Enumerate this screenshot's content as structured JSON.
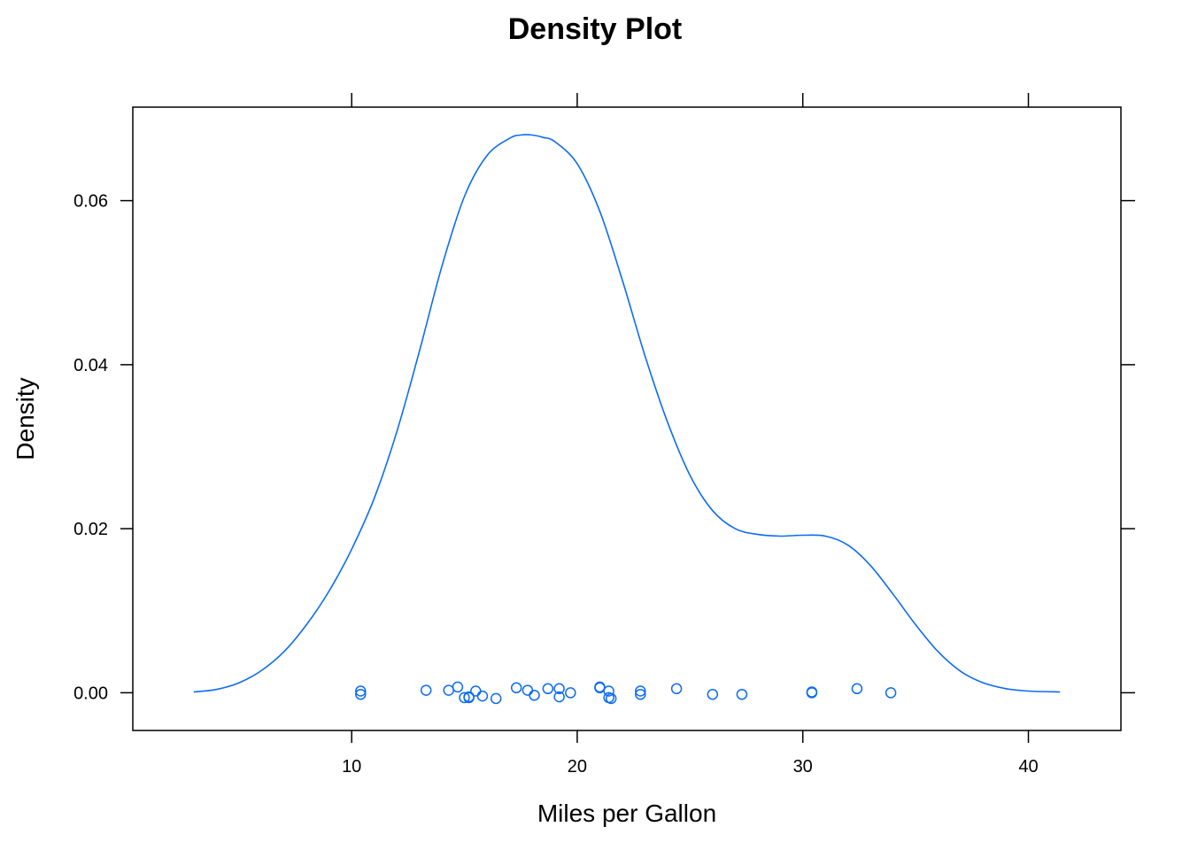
{
  "chart_data": {
    "type": "line",
    "title": "Density Plot",
    "xlabel": "Miles per Gallon",
    "ylabel": "Density",
    "xlim": [
      0.3,
      44.1
    ],
    "ylim": [
      -0.0046,
      0.0714
    ],
    "x_ticks": [
      10,
      20,
      30,
      40
    ],
    "x_tick_labels": [
      "10",
      "20",
      "30",
      "40"
    ],
    "y_ticks": [
      0.0,
      0.02,
      0.04,
      0.06
    ],
    "y_tick_labels": [
      "0.00",
      "0.02",
      "0.04",
      "0.06"
    ],
    "grid": false,
    "color": "#0c6cf5",
    "series": [
      {
        "kind": "density-curve",
        "x": [
          3.0,
          4.0,
          5.0,
          6.0,
          7.0,
          8.0,
          9.0,
          10.0,
          11.0,
          12.0,
          13.0,
          14.0,
          15.0,
          16.0,
          17.0,
          17.5,
          18.0,
          18.5,
          19.0,
          20.0,
          21.0,
          22.0,
          23.0,
          24.0,
          25.0,
          26.0,
          27.0,
          28.0,
          29.0,
          30.0,
          31.0,
          32.0,
          33.0,
          34.0,
          35.0,
          36.0,
          37.0,
          38.0,
          39.0,
          40.0,
          41.4
        ],
        "y": [
          0.0001,
          0.0004,
          0.0012,
          0.0027,
          0.005,
          0.0083,
          0.0124,
          0.0175,
          0.0237,
          0.0318,
          0.0416,
          0.052,
          0.0605,
          0.0655,
          0.0676,
          0.068,
          0.068,
          0.0677,
          0.0672,
          0.0645,
          0.0587,
          0.0503,
          0.0411,
          0.033,
          0.0265,
          0.0222,
          0.02,
          0.0193,
          0.0191,
          0.0192,
          0.0191,
          0.018,
          0.0155,
          0.012,
          0.0083,
          0.005,
          0.0026,
          0.0012,
          0.0005,
          0.0002,
          0.0001
        ]
      },
      {
        "kind": "jittered-points",
        "x": [
          10.4,
          10.4,
          13.3,
          14.3,
          14.7,
          15.0,
          15.2,
          15.2,
          15.5,
          15.8,
          16.4,
          17.3,
          17.8,
          18.1,
          18.7,
          19.2,
          19.2,
          19.7,
          21.0,
          21.0,
          21.4,
          21.4,
          21.5,
          22.8,
          22.8,
          24.4,
          26.0,
          27.3,
          30.4,
          30.4,
          32.4,
          33.9
        ],
        "y": [
          0.0002,
          -0.0002,
          0.0003,
          0.0003,
          0.0007,
          -0.0006,
          -0.0005,
          -0.0006,
          0.0002,
          -0.0004,
          -0.0007,
          0.0006,
          0.0003,
          -0.0003,
          0.0005,
          0.0005,
          -0.0005,
          0.0,
          0.0007,
          0.0006,
          0.0002,
          -0.0006,
          -0.0007,
          0.0002,
          -0.0002,
          0.0005,
          -0.0002,
          -0.0002,
          0.0001,
          0.0,
          0.0005,
          0.0
        ]
      }
    ]
  }
}
